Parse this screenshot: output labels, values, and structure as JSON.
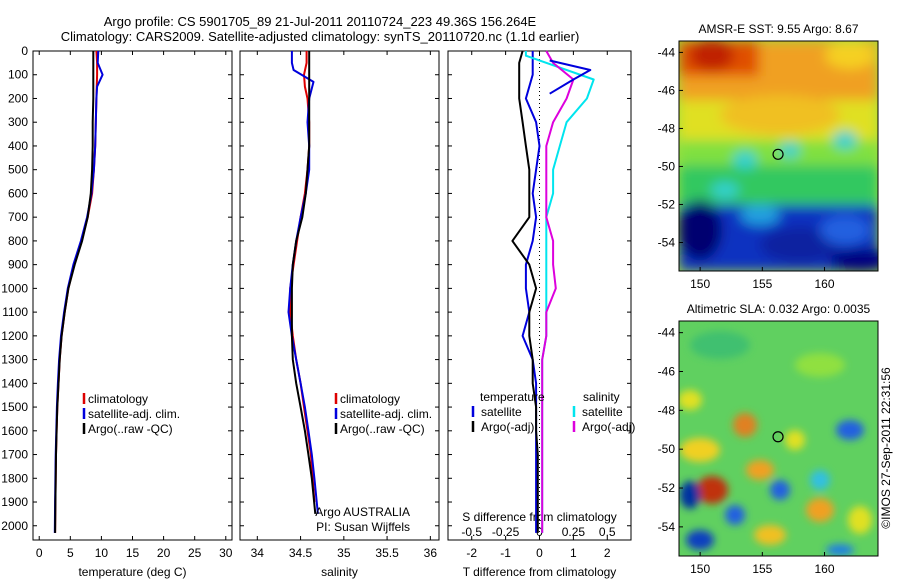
{
  "header": {
    "title_line1": "Argo profile: CS 5901705_89 21-Jul-2011 20110724_223 49.36S 156.264E",
    "title_line2": "Climatology: CARS2009. Satellite-adjusted climatology: synTS_20110720.nc (1.1d earlier)"
  },
  "colors": {
    "climatology": "#dd0000",
    "satellite": "#0000dd",
    "argo": "#000000",
    "sal_satellite": "#00e5ee",
    "sal_argo": "#dd00dd"
  },
  "depth_ticks": [
    0,
    100,
    200,
    300,
    400,
    500,
    600,
    700,
    800,
    900,
    1000,
    1100,
    1200,
    1300,
    1400,
    1500,
    1600,
    1700,
    1800,
    1900,
    2000
  ],
  "chart_data": [
    {
      "id": "temperature",
      "type": "line",
      "xlabel": "temperature (deg C)",
      "ylabel": "",
      "xlim": [
        -1,
        31
      ],
      "ylim": [
        2060,
        0
      ],
      "xticks": [
        "0",
        "5",
        "10",
        "15",
        "20",
        "25",
        "30"
      ],
      "xtick_values": [
        0,
        5,
        10,
        15,
        20,
        25,
        30
      ],
      "legend": [
        "climatology",
        "satellite-adj. clim.",
        "Argo(..raw -QC)"
      ],
      "legend_position": "lower-center",
      "series": [
        {
          "name": "climatology",
          "color": "#dd0000",
          "x": [
            9.2,
            9.3,
            9.3,
            9.2,
            9.1,
            9.0,
            8.8,
            8.5,
            7.8,
            6.8,
            5.6,
            4.7,
            4.1,
            3.6,
            3.3,
            3.1,
            2.9,
            2.8,
            2.7,
            2.65,
            2.6,
            2.55
          ],
          "y": [
            0,
            50,
            100,
            200,
            300,
            400,
            500,
            600,
            700,
            800,
            900,
            1000,
            1100,
            1200,
            1300,
            1400,
            1500,
            1600,
            1700,
            1800,
            1900,
            2030
          ]
        },
        {
          "name": "satellite-adj. clim.",
          "color": "#0000dd",
          "x": [
            9.5,
            9.4,
            10.2,
            9.3,
            9.2,
            9.1,
            9.0,
            8.8,
            8.4,
            7.7,
            6.7,
            5.5,
            4.6,
            4.0,
            3.5,
            3.2,
            3.0,
            2.85,
            2.75,
            2.65,
            2.6,
            2.55,
            2.5
          ],
          "y": [
            0,
            50,
            100,
            150,
            200,
            300,
            400,
            500,
            600,
            700,
            800,
            900,
            1000,
            1100,
            1200,
            1300,
            1400,
            1500,
            1600,
            1700,
            1800,
            1900,
            2030
          ]
        },
        {
          "name": "Argo(..raw -QC)",
          "color": "#000000",
          "x": [
            8.7,
            8.7,
            8.7,
            8.7,
            8.6,
            8.6,
            8.5,
            8.3,
            7.8,
            6.9,
            5.7,
            4.7,
            4.1,
            3.6,
            3.3,
            3.1,
            2.9,
            2.8,
            2.7,
            2.65,
            2.6,
            2.55
          ],
          "y": [
            0,
            50,
            100,
            200,
            300,
            400,
            500,
            600,
            700,
            800,
            900,
            1000,
            1100,
            1200,
            1300,
            1400,
            1500,
            1600,
            1700,
            1800,
            1900,
            2030
          ]
        }
      ]
    },
    {
      "id": "salinity",
      "type": "line",
      "xlabel": "salinity",
      "ylabel": "",
      "xlim": [
        33.8,
        36.1
      ],
      "ylim": [
        2060,
        0
      ],
      "xticks": [
        "34",
        "34.5",
        "35",
        "35.5",
        "36"
      ],
      "xtick_values": [
        34,
        34.5,
        35,
        35.5,
        36
      ],
      "legend": [
        "climatology",
        "satellite-adj. clim.",
        "Argo(..raw -QC)"
      ],
      "legend_position": "lower-right",
      "annotation": [
        "Argo AUSTRALIA",
        "PI: Susan Wijffels"
      ],
      "series": [
        {
          "name": "climatology",
          "color": "#dd0000",
          "x": [
            34.57,
            34.57,
            34.54,
            34.55,
            34.58,
            34.6,
            34.6,
            34.58,
            34.55,
            34.5,
            34.46,
            34.42,
            34.38,
            34.38,
            34.41,
            34.45,
            34.5,
            34.54,
            34.58,
            34.62,
            34.64,
            34.66
          ],
          "y": [
            0,
            50,
            100,
            150,
            200,
            300,
            400,
            500,
            600,
            700,
            800,
            900,
            1000,
            1100,
            1200,
            1300,
            1400,
            1500,
            1600,
            1700,
            1800,
            1900
          ]
        },
        {
          "name": "satellite-adj. clim.",
          "color": "#0000dd",
          "x": [
            34.4,
            34.4,
            34.42,
            34.65,
            34.6,
            34.58,
            34.6,
            34.6,
            34.56,
            34.5,
            34.45,
            34.41,
            34.38,
            34.36,
            34.4,
            34.45,
            34.5,
            34.55,
            34.59,
            34.63,
            34.66,
            34.7
          ],
          "y": [
            0,
            50,
            80,
            130,
            200,
            300,
            400,
            500,
            600,
            700,
            800,
            900,
            1000,
            1100,
            1200,
            1300,
            1400,
            1500,
            1600,
            1700,
            1800,
            1950
          ]
        },
        {
          "name": "Argo(..raw -QC)",
          "color": "#000000",
          "x": [
            34.6,
            34.6,
            34.6,
            34.6,
            34.6,
            34.58,
            34.56,
            34.52,
            34.45,
            34.41,
            34.4,
            34.4,
            34.4,
            34.41,
            34.45,
            34.5,
            34.55,
            34.59,
            34.63,
            34.67
          ],
          "y": [
            0,
            100,
            200,
            300,
            400,
            500,
            600,
            700,
            800,
            900,
            1000,
            1100,
            1200,
            1300,
            1400,
            1500,
            1600,
            1700,
            1800,
            1950
          ]
        }
      ]
    },
    {
      "id": "difference",
      "type": "line",
      "xlabel": "T difference from climatology",
      "xlabel2": "S difference from climatology",
      "xlim": [
        -2.7,
        2.7
      ],
      "ylim": [
        2060,
        0
      ],
      "xticks": [
        "-2",
        "-1",
        "0",
        "1",
        "2"
      ],
      "xtick_values": [
        -2,
        -1,
        0,
        1,
        2
      ],
      "xticks2": [
        "-0.5",
        "-0.25",
        "0",
        "0.25",
        "0.5"
      ],
      "xtick2_values": [
        -0.5,
        -0.25,
        0,
        0.25,
        0.5
      ],
      "legend_temperature_header": "temperature",
      "legend_salinity_header": "salinity",
      "legend": [
        "satellite",
        "Argo(-adj)",
        "satellite",
        "Argo(-adj)"
      ],
      "series": [
        {
          "name": "satellite",
          "group": "temperature",
          "color": "#0000dd",
          "x": [
            -0.2,
            -0.2,
            -0.2,
            -0.4,
            -0.1,
            0.0,
            -0.1,
            -0.2,
            -0.1,
            -0.2,
            -0.4,
            -0.4,
            -0.3,
            -0.5,
            -0.2,
            -0.1,
            -0.1,
            -0.1,
            -0.1,
            -0.1,
            -0.1,
            -0.1
          ],
          "y": [
            0,
            50,
            100,
            200,
            300,
            400,
            500,
            600,
            700,
            800,
            900,
            1000,
            1100,
            1200,
            1300,
            1400,
            1500,
            1600,
            1700,
            1800,
            1900,
            2030
          ]
        },
        {
          "name": "Argo(-adj)",
          "group": "temperature",
          "color": "#000000",
          "x": [
            -0.5,
            -0.6,
            -0.6,
            -0.6,
            -0.5,
            -0.4,
            -0.3,
            -0.3,
            -0.3,
            -0.8,
            -0.3,
            -0.1,
            -0.3,
            -0.3,
            -0.2,
            -0.2,
            -0.1,
            -0.1,
            -0.05,
            -0.05,
            -0.05,
            -0.05
          ],
          "y": [
            0,
            50,
            100,
            200,
            300,
            400,
            500,
            600,
            700,
            800,
            900,
            1000,
            1100,
            1200,
            1300,
            1400,
            1500,
            1600,
            1700,
            1800,
            1900,
            2030
          ]
        },
        {
          "name": "satellite",
          "group": "salinity",
          "color": "#00e5ee",
          "x": [
            -0.1,
            -0.1,
            0.4,
            0.35,
            0.2,
            0.15,
            0.1,
            0.1,
            0.05,
            0.05,
            0.05,
            0.05,
            0.05,
            0.05,
            0.02,
            0.02,
            0.02,
            0.02,
            0.02,
            0.02,
            0.02,
            0.02
          ],
          "y": [
            0,
            20,
            120,
            200,
            300,
            400,
            500,
            600,
            700,
            800,
            900,
            1000,
            1100,
            1200,
            1300,
            1400,
            1500,
            1600,
            1700,
            1800,
            1900,
            2030
          ]
        },
        {
          "name": "Argo(-adj)",
          "group": "salinity",
          "color": "#dd00dd",
          "x": [
            0.05,
            0.1,
            0.25,
            0.2,
            0.1,
            0.05,
            0.05,
            0.05,
            0.05,
            0.1,
            0.1,
            0.12,
            0.05,
            0.05,
            0.02,
            0.02,
            0.02,
            0.02,
            0.02,
            0.02,
            0.02,
            0.02
          ],
          "y": [
            0,
            50,
            120,
            200,
            300,
            400,
            500,
            600,
            700,
            800,
            900,
            1000,
            1100,
            1200,
            1300,
            1400,
            1500,
            1600,
            1700,
            1800,
            1900,
            2030
          ]
        },
        {
          "name": "satellite-peak",
          "group": "temperature",
          "color": "#0000dd",
          "x": [
            0.3,
            1.5,
            1.0,
            0.3
          ],
          "y": [
            40,
            80,
            120,
            180
          ]
        }
      ]
    },
    {
      "id": "sst_map",
      "type": "heatmap",
      "title": "AMSR-E SST: 9.55 Argo: 8.67",
      "xticks": [
        "150",
        "155",
        "160"
      ],
      "xtick_values": [
        150,
        155,
        160
      ],
      "yticks": [
        "-44",
        "-46",
        "-48",
        "-50",
        "-52",
        "-54"
      ],
      "ytick_values": [
        -44,
        -46,
        -48,
        -50,
        -52,
        -54
      ],
      "xlim": [
        148.3,
        164.3
      ],
      "ylim": [
        -55.5,
        -43.4
      ],
      "marker": {
        "lon": 156.264,
        "lat": -49.36
      }
    },
    {
      "id": "sla_map",
      "type": "heatmap",
      "title": "Altimetric SLA: 0.032 Argo: 0.0035",
      "xticks": [
        "150",
        "155",
        "160"
      ],
      "xtick_values": [
        150,
        155,
        160
      ],
      "yticks": [
        "-44",
        "-46",
        "-48",
        "-50",
        "-52",
        "-54"
      ],
      "ytick_values": [
        -44,
        -46,
        -48,
        -50,
        -52,
        -54
      ],
      "xlim": [
        148.3,
        164.3
      ],
      "ylim": [
        -55.5,
        -43.4
      ],
      "marker": {
        "lon": 156.264,
        "lat": -49.36
      }
    }
  ],
  "credit": "©IMOS 27-Sep-2011 22:31:56"
}
